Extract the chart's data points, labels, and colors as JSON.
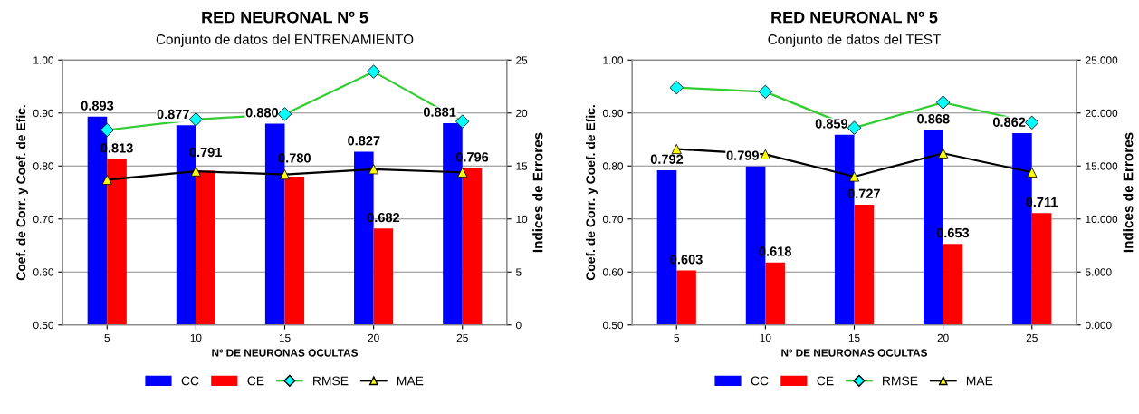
{
  "chart_data": [
    {
      "type": "bar",
      "title": "RED NEURONAL Nº 5",
      "subtitle": "Conjunto de datos del ENTRENAMIENTO",
      "xlabel": "Nº DE NEURONAS OCULTAS",
      "ylabel": "Coef. de Corr. y Coef. de Efic.",
      "y2label": "Indices de Errores",
      "categories": [
        "5",
        "10",
        "15",
        "20",
        "25"
      ],
      "series": [
        {
          "name": "CC",
          "type": "bar",
          "color": "#0000ff",
          "values": [
            0.893,
            0.877,
            0.88,
            0.827,
            0.881
          ],
          "value_labels": [
            "0.893",
            "0.877",
            "0.880",
            "0.827",
            "0.881"
          ]
        },
        {
          "name": "CE",
          "type": "bar",
          "color": "#ff0000",
          "values": [
            0.813,
            0.791,
            0.78,
            0.682,
            0.796
          ],
          "value_labels": [
            "0.813",
            "0.791",
            "0.780",
            "0.682",
            "0.796"
          ]
        },
        {
          "name": "RMSE",
          "type": "line",
          "axis": "y2",
          "color": "#33cc33",
          "marker": "diamond",
          "colors": [
            "#00ffff",
            "#00ffff",
            "#00ffff",
            "#00ffff",
            "#00ffff"
          ],
          "values": [
            18.4,
            19.4,
            19.9,
            23.9,
            19.2
          ]
        },
        {
          "name": "MAE",
          "type": "line",
          "axis": "y2",
          "color": "#000000",
          "marker": "triangle",
          "colors": [
            "#ffff00",
            "#ffff00",
            "#ffff00",
            "#ffff00",
            "#ffff00"
          ],
          "values": [
            13.7,
            14.5,
            14.2,
            14.7,
            14.4
          ]
        }
      ],
      "ylim": [
        0.5,
        1.0
      ],
      "yticks": [
        {
          "value": 0.5,
          "label": "0.50"
        },
        {
          "value": 0.6,
          "label": "0.60"
        },
        {
          "value": 0.7,
          "label": "0.70"
        },
        {
          "value": 0.8,
          "label": "0.80"
        },
        {
          "value": 0.9,
          "label": "0.90"
        },
        {
          "value": 1.0,
          "label": "1.00"
        }
      ],
      "y2lim": [
        0,
        25
      ],
      "y2ticks": [
        0,
        5,
        10,
        15,
        20,
        25
      ],
      "grid": "y",
      "legend": "bottom"
    },
    {
      "type": "bar",
      "title": "RED NEURONAL Nº 5",
      "subtitle": "Conjunto de datos del TEST",
      "xlabel": "Nº DE NEURONAS OCULTAS",
      "ylabel": "Coef. de Corr. y Coef. de Efic.",
      "y2label": "Indices de Errores",
      "categories": [
        "5",
        "10",
        "15",
        "20",
        "25"
      ],
      "series": [
        {
          "name": "CC",
          "type": "bar",
          "color": "#0000ff",
          "values": [
            0.792,
            0.799,
            0.859,
            0.868,
            0.862
          ],
          "value_labels": [
            "0.792",
            "0.799",
            "0.859",
            "0.868",
            "0.862"
          ]
        },
        {
          "name": "CE",
          "type": "bar",
          "color": "#ff0000",
          "values": [
            0.603,
            0.618,
            0.727,
            0.653,
            0.711
          ],
          "value_labels": [
            "0.603",
            "0.618",
            "0.727",
            "0.653",
            "0.711"
          ]
        },
        {
          "name": "RMSE",
          "type": "line",
          "axis": "y2",
          "color": "#33cc33",
          "marker": "diamond",
          "colors": [
            "#00ffff",
            "#00ffff",
            "#00ffff",
            "#00ffff",
            "#00ffff"
          ],
          "values": [
            22.4,
            22.0,
            18.6,
            21.0,
            19.1
          ]
        },
        {
          "name": "MAE",
          "type": "line",
          "axis": "y2",
          "color": "#000000",
          "marker": "triangle",
          "colors": [
            "#ffff00",
            "#ffff00",
            "#ffff00",
            "#ffff00",
            "#ffff00"
          ],
          "values": [
            16.6,
            16.1,
            14.0,
            16.2,
            14.4
          ]
        }
      ],
      "ylim": [
        0.5,
        1.0
      ],
      "yticks": [
        {
          "value": 0.5,
          "label": "0.50"
        },
        {
          "value": 0.6,
          "label": "0.60"
        },
        {
          "value": 0.7,
          "label": "0.70"
        },
        {
          "value": 0.8,
          "label": "0.80"
        },
        {
          "value": 0.9,
          "label": "0.90"
        },
        {
          "value": 1.0,
          "label": "1.00"
        }
      ],
      "y2lim": [
        0,
        25
      ],
      "y2ticks": [
        {
          "value": 0,
          "label": "0.000"
        },
        {
          "value": 5,
          "label": "5.000"
        },
        {
          "value": 10,
          "label": "10.000"
        },
        {
          "value": 15,
          "label": "15.000"
        },
        {
          "value": 20,
          "label": "20.000"
        },
        {
          "value": 25,
          "label": "25.000"
        }
      ],
      "grid": "y",
      "legend": "bottom"
    }
  ]
}
